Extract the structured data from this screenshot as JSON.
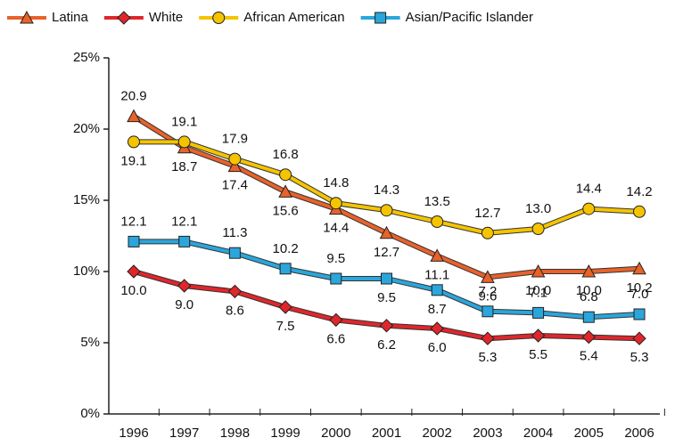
{
  "chart_data": {
    "type": "line",
    "categories": [
      "1996",
      "1997",
      "1998",
      "1999",
      "2000",
      "2001",
      "2002",
      "2003",
      "2004",
      "2005",
      "2006"
    ],
    "series": [
      {
        "name": "Latina",
        "color": "#e8622a",
        "marker": "triangle",
        "values": [
          20.9,
          18.7,
          17.4,
          15.6,
          14.4,
          12.7,
          11.1,
          9.6,
          10.0,
          10.0,
          10.2
        ],
        "value_labels": [
          "20.9",
          "18.7",
          "17.4",
          "15.6",
          "14.4",
          "12.7",
          "11.1",
          "9.6",
          "10.0",
          "10.0",
          "10.2"
        ]
      },
      {
        "name": "White",
        "color": "#e0262b",
        "marker": "diamond",
        "values": [
          10.0,
          9.0,
          8.6,
          7.5,
          6.6,
          6.2,
          6.0,
          5.3,
          5.5,
          5.4,
          5.3
        ],
        "value_labels": [
          "10.0",
          "9.0",
          "8.6",
          "7.5",
          "6.6",
          "6.2",
          "6.0",
          "5.3",
          "5.5",
          "5.4",
          "5.3"
        ]
      },
      {
        "name": "African American",
        "color": "#f5c400",
        "marker": "circle",
        "values": [
          19.1,
          19.1,
          17.9,
          16.8,
          14.8,
          14.3,
          13.5,
          12.7,
          13.0,
          14.4,
          14.2
        ],
        "value_labels": [
          "19.1",
          "19.1",
          "17.9",
          "16.8",
          "14.8",
          "14.3",
          "13.5",
          "12.7",
          "13.0",
          "14.4",
          "14.2"
        ]
      },
      {
        "name": "Asian/Pacific Islander",
        "color": "#2aa6dc",
        "marker": "square",
        "values": [
          12.1,
          12.1,
          11.3,
          10.2,
          9.5,
          9.5,
          8.7,
          7.2,
          7.1,
          6.8,
          7.0
        ],
        "value_labels": [
          "12.1",
          "12.1",
          "11.3",
          "10.2",
          "9.5",
          "9.5",
          "8.7",
          "7.2",
          "7.1",
          "6.8",
          "7.0"
        ]
      }
    ],
    "ylim": [
      0,
      25
    ],
    "yticks": [
      {
        "value": 0,
        "label": "0%"
      },
      {
        "value": 5,
        "label": "5%"
      },
      {
        "value": 10,
        "label": "10%"
      },
      {
        "value": 15,
        "label": "15%"
      },
      {
        "value": 20,
        "label": "20%"
      },
      {
        "value": 25,
        "label": "25%"
      }
    ],
    "legend": "top"
  }
}
